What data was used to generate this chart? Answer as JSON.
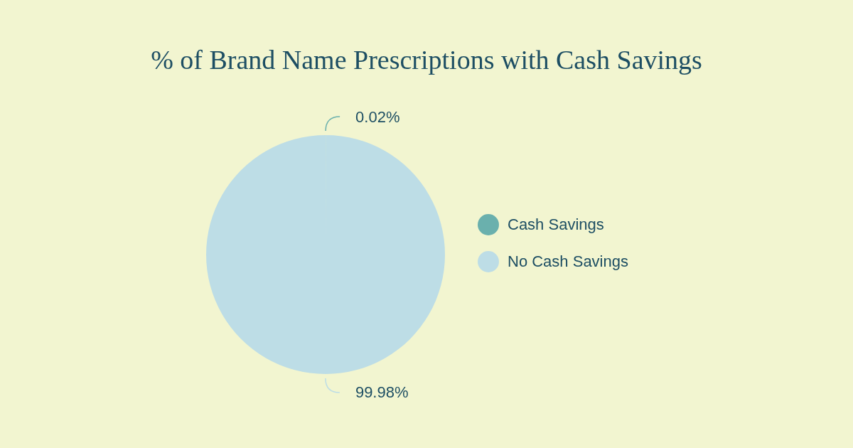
{
  "chart_data": {
    "type": "pie",
    "title": "% of Brand Name Prescriptions with Cash Savings",
    "categories": [
      "Cash Savings",
      "No Cash Savings"
    ],
    "values": [
      0.02,
      99.98
    ],
    "colors": [
      "#6ab0ad",
      "#bddde6"
    ],
    "value_labels": [
      "0.02%",
      "99.98%"
    ],
    "legend": "right"
  }
}
